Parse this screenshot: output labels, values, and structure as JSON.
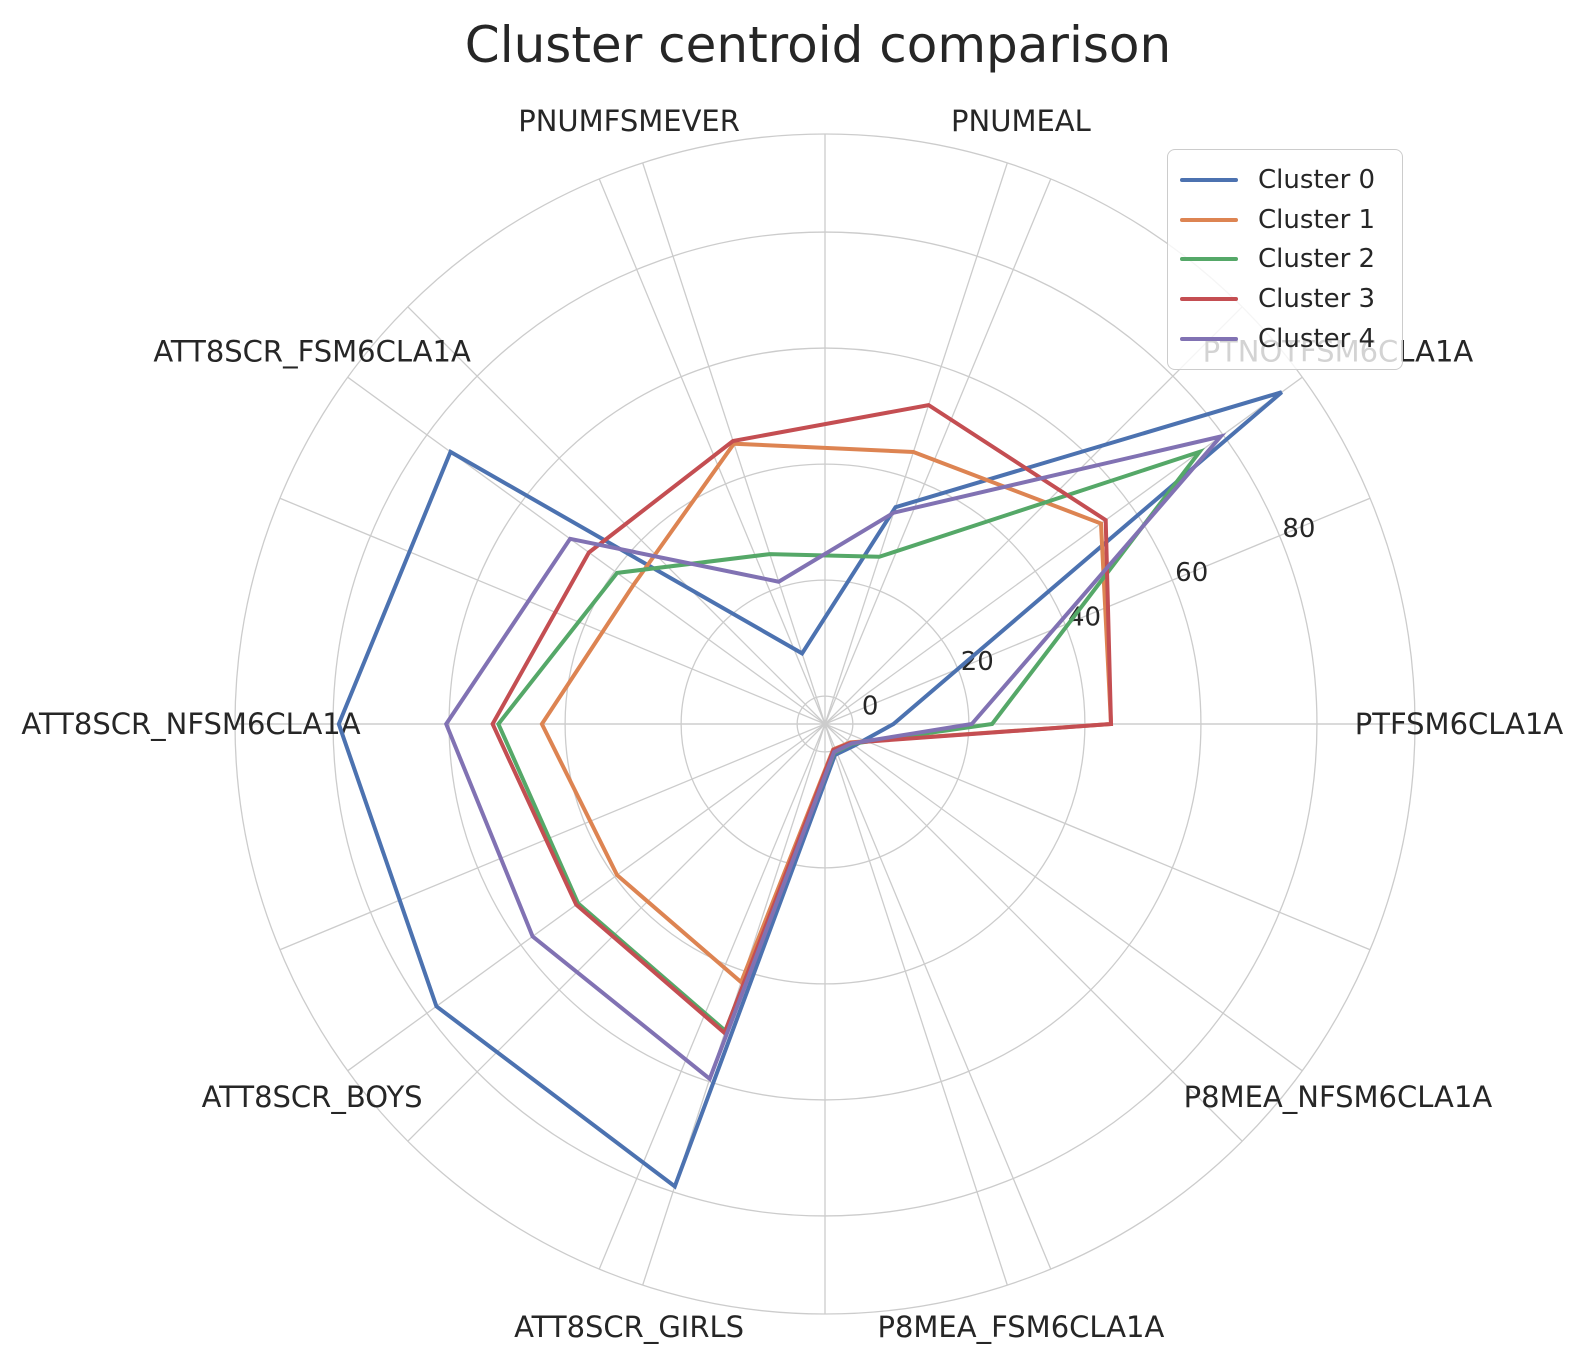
{
  "title": "Cluster centroid comparison",
  "chart_data": {
    "type": "radar",
    "categories": [
      "PTFSM6CLA1A",
      "PTNOTFSM6CLA1A",
      "PNUMEAL",
      "PNUMFSMEVER",
      "ATT8SCR_FSM6CLA1A",
      "ATT8SCR_NFSM6CLA1A",
      "ATT8SCR_BOYS",
      "ATT8SCR_GIRLS",
      "P8MEA_FSM6CLA1A",
      "P8MEA_NFSM6CLA1A"
    ],
    "angles_deg": [
      0,
      36,
      72,
      108,
      144,
      180,
      216,
      252,
      288,
      324
    ],
    "series": [
      {
        "name": "Cluster 0",
        "color": "#4C72B0",
        "values": [
          7.0,
          92.5,
          34.5,
          8.0,
          75.0,
          79.0,
          78.0,
          79.0,
          0.8,
          1.5
        ]
      },
      {
        "name": "Cluster 1",
        "color": "#DD8452",
        "values": [
          44.5,
          54.0,
          44.5,
          46.0,
          36.0,
          44.0,
          39.5,
          42.0,
          -0.2,
          0.6
        ]
      },
      {
        "name": "Cluster 2",
        "color": "#55A868",
        "values": [
          24.0,
          75.0,
          25.5,
          26.0,
          39.5,
          51.5,
          47.8,
          50.8,
          0.4,
          1.0
        ]
      },
      {
        "name": "Cluster 3",
        "color": "#C44E52",
        "values": [
          44.5,
          55.0,
          53.0,
          46.5,
          45.5,
          52.5,
          48.2,
          51.2,
          -0.1,
          0.7
        ]
      },
      {
        "name": "Cluster 4",
        "color": "#8172B3",
        "values": [
          20.5,
          79.5,
          33.5,
          21.0,
          49.5,
          60.5,
          57.5,
          59.5,
          0.3,
          0.9
        ]
      }
    ],
    "radial_axis": {
      "ticks": [
        0,
        20,
        40,
        60,
        80
      ],
      "tick_labels": [
        "0",
        "20",
        "40",
        "60",
        "80"
      ],
      "rmin": -4.8,
      "rmax": 96.9,
      "tick_label_angle_deg": 22.5
    },
    "theta_grid_step_deg": 22.5,
    "grid": true,
    "legend_position": "upper right",
    "colors": {
      "grid": "#cccccc",
      "text": "#262626",
      "background": "#ffffff",
      "legend_border": "#cccccc"
    }
  },
  "legend": {
    "items": [
      "Cluster 0",
      "Cluster 1",
      "Cluster 2",
      "Cluster 3",
      "Cluster 4"
    ]
  }
}
